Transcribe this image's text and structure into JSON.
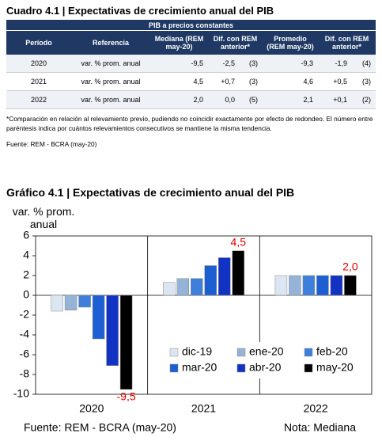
{
  "table_section": {
    "title": "Cuadro 4.1 | Expectativas de crecimiento anual del PIB",
    "group_header": "PIB a precios constantes",
    "columns": [
      "Período",
      "Referencia",
      "Mediana (REM may-20)",
      "Dif. con REM anterior*",
      "Promedio (REM may-20)",
      "Dif. con REM anterior*"
    ],
    "rows": [
      [
        "2020",
        "var. % prom. anual",
        "-9,5",
        "-2,5",
        "(3)",
        "-9,3",
        "-1,9",
        "(4)"
      ],
      [
        "2021",
        "var. % prom. anual",
        "4,5",
        "+0,7",
        "(3)",
        "4,6",
        "+0,5",
        "(3)"
      ],
      [
        "2022",
        "var. % prom. anual",
        "2,0",
        "0,0",
        "(5)",
        "2,1",
        "+0,1",
        "(2)"
      ]
    ],
    "note": "*Comparación en relación al relevamiento previo, pudiendo no coincidir exactamente por efecto de redondeo. El número entre paréntesis indica por cuántos relevamientos consecutivos se mantiene la misma tendencia.",
    "source": "Fuente: REM - BCRA (may-20)"
  },
  "chart_data": {
    "type": "bar",
    "title": "Gráfico 4.1 | Expectativas de crecimiento anual del PIB",
    "y_label": "var. % prom. anual",
    "categories": [
      "2020",
      "2021",
      "2022"
    ],
    "series": [
      {
        "name": "dic-19",
        "color": "#dce6f2",
        "values": [
          -1.6,
          1.3,
          2.0
        ]
      },
      {
        "name": "ene-20",
        "color": "#95b3d7",
        "values": [
          -1.5,
          1.7,
          2.0
        ]
      },
      {
        "name": "feb-20",
        "color": "#3f7fdc",
        "values": [
          -1.2,
          1.7,
          2.0
        ]
      },
      {
        "name": "mar-20",
        "color": "#1c5fd2",
        "values": [
          -4.4,
          3.0,
          2.0
        ]
      },
      {
        "name": "abr-20",
        "color": "#1232c4",
        "values": [
          -7.1,
          3.8,
          2.0
        ]
      },
      {
        "name": "may-20",
        "color": "#000000",
        "values": [
          -9.5,
          4.5,
          2.0
        ],
        "value_labels": [
          "-9,5",
          "4,5",
          "2,0"
        ]
      }
    ],
    "value_label_color": "#e00000",
    "ylim": [
      -10,
      6
    ],
    "yticks": [
      6,
      4,
      2,
      0,
      -2,
      -4,
      -6,
      -8,
      -10
    ],
    "legend": "lower right",
    "source": "Fuente: REM - BCRA (may-20)",
    "note": "Nota: Mediana"
  }
}
